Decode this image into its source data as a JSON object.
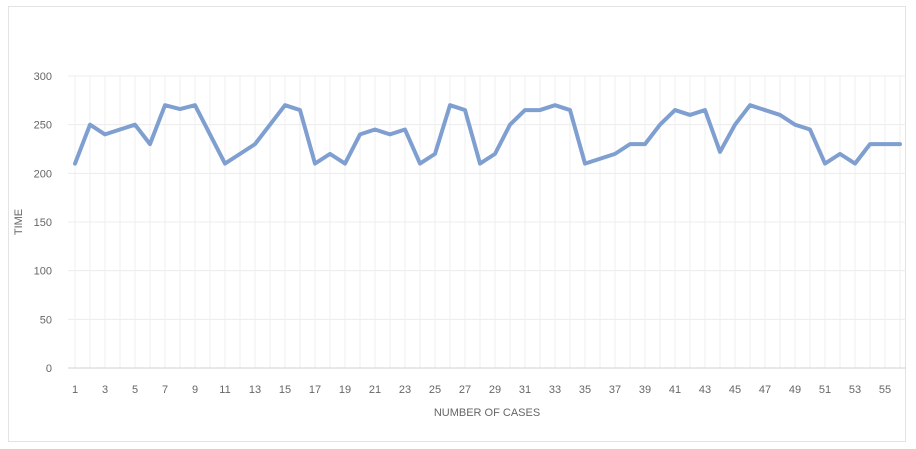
{
  "chart_data": {
    "type": "line",
    "title": "",
    "xlabel": "NUMBER OF CASES",
    "ylabel": "TIME",
    "ylim": [
      0,
      300
    ],
    "y_ticks": [
      0,
      50,
      100,
      150,
      200,
      250,
      300
    ],
    "x_ticks": [
      "1",
      "3",
      "5",
      "7",
      "9",
      "11",
      "13",
      "15",
      "17",
      "19",
      "21",
      "23",
      "25",
      "27",
      "29",
      "31",
      "33",
      "35",
      "37",
      "39",
      "41",
      "43",
      "45",
      "47",
      "49",
      "51",
      "53",
      "55"
    ],
    "grid": true,
    "legend": "none",
    "line_color": "#7f9fd0",
    "x": [
      1,
      2,
      3,
      4,
      5,
      6,
      7,
      8,
      9,
      10,
      11,
      12,
      13,
      14,
      15,
      16,
      17,
      18,
      19,
      20,
      21,
      22,
      23,
      24,
      25,
      26,
      27,
      28,
      29,
      30,
      31,
      32,
      33,
      34,
      35,
      36,
      37,
      38,
      39,
      40,
      41,
      42,
      43,
      44,
      45,
      46,
      47,
      48,
      49,
      50,
      51,
      52,
      53,
      54,
      55,
      56
    ],
    "values": [
      210,
      250,
      240,
      245,
      250,
      230,
      270,
      266,
      270,
      240,
      210,
      220,
      230,
      250,
      270,
      265,
      210,
      220,
      210,
      240,
      245,
      240,
      245,
      210,
      220,
      270,
      265,
      210,
      220,
      250,
      265,
      265,
      270,
      265,
      210,
      215,
      220,
      230,
      230,
      250,
      265,
      260,
      265,
      222,
      250,
      270,
      265,
      260,
      250,
      245,
      210,
      220,
      210,
      230,
      230,
      230
    ]
  }
}
